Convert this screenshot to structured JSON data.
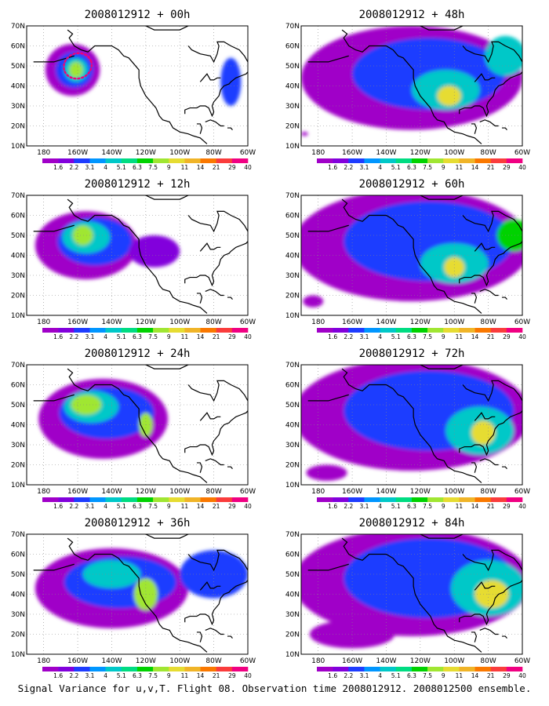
{
  "figure": {
    "caption": "Signal Variance for u,v,T. Flight 08. Observation time 2008012912. 2008012500 ensemble."
  },
  "colorbar": {
    "levels": [
      "1.6",
      "2.2",
      "3.1",
      "4",
      "5.1",
      "6.3",
      "7.5",
      "9",
      "11",
      "14",
      "21",
      "29",
      "40"
    ],
    "colors": [
      "#a000c8",
      "#8200dc",
      "#1e3cff",
      "#0096ff",
      "#00c8c8",
      "#00dc82",
      "#00d200",
      "#a0e632",
      "#e6dc32",
      "#f0b428",
      "#fa7800",
      "#fa3c3c",
      "#f00082"
    ]
  },
  "axes": {
    "lat_labels": [
      "10N",
      "20N",
      "30N",
      "40N",
      "50N",
      "60N",
      "70N"
    ],
    "lon_labels": [
      "180",
      "160W",
      "140W",
      "120W",
      "100W",
      "80W",
      "60W"
    ],
    "lat_range": [
      10,
      70
    ],
    "lon_range": [
      -190,
      -60
    ]
  },
  "panels": [
    {
      "title": "2008012912 + 00h",
      "has_track": true,
      "blobs": [
        {
          "lon": -163,
          "lat": 48,
          "rx": 16,
          "ry": 13,
          "level": 0
        },
        {
          "lon": -162,
          "lat": 48,
          "rx": 11,
          "ry": 9,
          "level": 2
        },
        {
          "lon": -161,
          "lat": 48,
          "rx": 7,
          "ry": 6,
          "level": 4
        },
        {
          "lon": -161,
          "lat": 48,
          "rx": 4,
          "ry": 4,
          "level": 7
        },
        {
          "lon": -70,
          "lat": 42,
          "rx": 6,
          "ry": 12,
          "level": 2
        }
      ]
    },
    {
      "title": "2008012912 + 12h",
      "has_track": false,
      "blobs": [
        {
          "lon": -155,
          "lat": 45,
          "rx": 30,
          "ry": 17,
          "level": 0
        },
        {
          "lon": -150,
          "lat": 47,
          "rx": 22,
          "ry": 12,
          "level": 2
        },
        {
          "lon": -155,
          "lat": 49,
          "rx": 14,
          "ry": 8,
          "level": 4
        },
        {
          "lon": -157,
          "lat": 50,
          "rx": 6,
          "ry": 5,
          "level": 7
        },
        {
          "lon": -115,
          "lat": 42,
          "rx": 15,
          "ry": 8,
          "level": 1
        }
      ]
    },
    {
      "title": "2008012912 + 24h",
      "has_track": false,
      "blobs": [
        {
          "lon": -145,
          "lat": 43,
          "rx": 38,
          "ry": 20,
          "level": 0
        },
        {
          "lon": -143,
          "lat": 46,
          "rx": 28,
          "ry": 13,
          "level": 2
        },
        {
          "lon": -152,
          "lat": 49,
          "rx": 16,
          "ry": 8,
          "level": 4
        },
        {
          "lon": -155,
          "lat": 50,
          "rx": 9,
          "ry": 5,
          "level": 7
        },
        {
          "lon": -120,
          "lat": 40,
          "rx": 4,
          "ry": 6,
          "level": 7
        }
      ]
    },
    {
      "title": "2008012912 + 36h",
      "has_track": false,
      "blobs": [
        {
          "lon": -140,
          "lat": 43,
          "rx": 45,
          "ry": 20,
          "level": 0
        },
        {
          "lon": -135,
          "lat": 46,
          "rx": 33,
          "ry": 13,
          "level": 2
        },
        {
          "lon": -140,
          "lat": 50,
          "rx": 17,
          "ry": 7,
          "level": 4
        },
        {
          "lon": -120,
          "lat": 40,
          "rx": 7,
          "ry": 8,
          "level": 7
        },
        {
          "lon": -80,
          "lat": 50,
          "rx": 20,
          "ry": 12,
          "level": 2
        }
      ]
    },
    {
      "title": "2008012912 + 48h",
      "has_track": false,
      "blobs": [
        {
          "lon": -125,
          "lat": 44,
          "rx": 65,
          "ry": 26,
          "level": 0
        },
        {
          "lon": -115,
          "lat": 46,
          "rx": 45,
          "ry": 18,
          "level": 2
        },
        {
          "lon": -105,
          "lat": 38,
          "rx": 20,
          "ry": 10,
          "level": 4
        },
        {
          "lon": -103,
          "lat": 35,
          "rx": 7,
          "ry": 5,
          "level": 8
        },
        {
          "lon": -70,
          "lat": 55,
          "rx": 12,
          "ry": 10,
          "level": 4
        },
        {
          "lon": -188,
          "lat": 16,
          "rx": 2,
          "ry": 1,
          "level": 0
        }
      ]
    },
    {
      "title": "2008012912 + 60h",
      "has_track": false,
      "blobs": [
        {
          "lon": -125,
          "lat": 45,
          "rx": 70,
          "ry": 28,
          "level": 0
        },
        {
          "lon": -115,
          "lat": 47,
          "rx": 50,
          "ry": 20,
          "level": 2
        },
        {
          "lon": -100,
          "lat": 36,
          "rx": 20,
          "ry": 10,
          "level": 4
        },
        {
          "lon": -100,
          "lat": 34,
          "rx": 6,
          "ry": 5,
          "level": 8
        },
        {
          "lon": -65,
          "lat": 50,
          "rx": 10,
          "ry": 8,
          "level": 6
        },
        {
          "lon": -183,
          "lat": 17,
          "rx": 6,
          "ry": 3,
          "level": 0
        }
      ]
    },
    {
      "title": "2008012912 + 72h",
      "has_track": false,
      "blobs": [
        {
          "lon": -125,
          "lat": 45,
          "rx": 70,
          "ry": 28,
          "level": 0
        },
        {
          "lon": -115,
          "lat": 47,
          "rx": 50,
          "ry": 20,
          "level": 2
        },
        {
          "lon": -85,
          "lat": 37,
          "rx": 20,
          "ry": 12,
          "level": 4
        },
        {
          "lon": -83,
          "lat": 36,
          "rx": 7,
          "ry": 6,
          "level": 8
        },
        {
          "lon": -175,
          "lat": 16,
          "rx": 12,
          "ry": 4,
          "level": 0
        }
      ]
    },
    {
      "title": "2008012912 + 84h",
      "has_track": false,
      "blobs": [
        {
          "lon": -125,
          "lat": 46,
          "rx": 70,
          "ry": 27,
          "level": 0
        },
        {
          "lon": -115,
          "lat": 48,
          "rx": 50,
          "ry": 20,
          "level": 2
        },
        {
          "lon": -80,
          "lat": 43,
          "rx": 22,
          "ry": 14,
          "level": 4
        },
        {
          "lon": -78,
          "lat": 40,
          "rx": 10,
          "ry": 7,
          "level": 8
        },
        {
          "lon": -160,
          "lat": 20,
          "rx": 25,
          "ry": 7,
          "level": 0
        }
      ]
    }
  ]
}
